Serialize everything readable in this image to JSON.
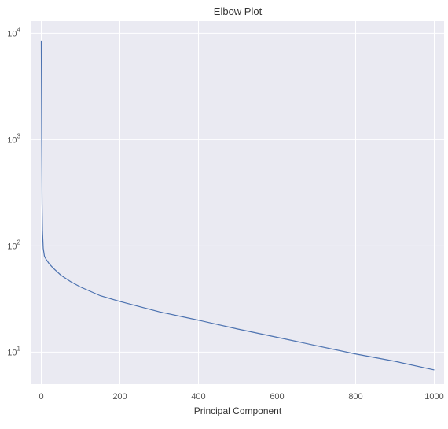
{
  "chart_data": {
    "type": "line",
    "title": "Elbow Plot",
    "xlabel": "Principal Component",
    "ylabel": "",
    "xlim": [
      -25,
      1025
    ],
    "ylim": [
      5,
      13000
    ],
    "yscale": "log",
    "grid": true,
    "x_ticks": [
      0,
      200,
      400,
      600,
      800,
      1000
    ],
    "x_tick_labels": [
      "0",
      "200",
      "400",
      "600",
      "800",
      "1000"
    ],
    "y_ticks": [
      10,
      100,
      1000,
      10000
    ],
    "y_tick_labels": [
      {
        "base": "10",
        "exp": "1"
      },
      {
        "base": "10",
        "exp": "2"
      },
      {
        "base": "10",
        "exp": "3"
      },
      {
        "base": "10",
        "exp": "4"
      }
    ],
    "series": [
      {
        "color": "#4c72b0",
        "x": [
          0,
          1,
          2,
          3,
          5,
          8,
          12,
          20,
          30,
          50,
          75,
          100,
          150,
          200,
          300,
          400,
          500,
          600,
          700,
          800,
          900,
          1000
        ],
        "y": [
          8500,
          1000,
          250,
          140,
          95,
          80,
          75,
          68,
          62,
          53,
          46,
          41,
          34,
          30,
          24,
          20,
          16.5,
          13.8,
          11.5,
          9.6,
          8.2,
          6.8
        ]
      }
    ]
  }
}
